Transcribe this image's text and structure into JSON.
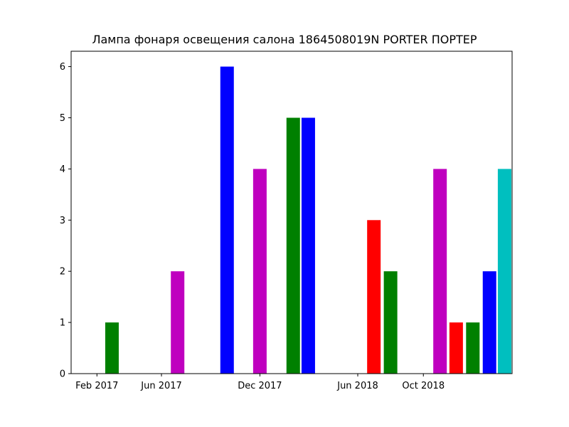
{
  "chart_data": {
    "type": "bar",
    "title": "Лампа фонаря освещения салона 1864508019N PORTER ПОРТЕР",
    "xlabel": "",
    "ylabel": "",
    "x_axis": "date",
    "xlim": [
      "2016-12-15",
      "2019-03-15"
    ],
    "ylim": [
      0,
      6.3
    ],
    "grid": false,
    "x_tick_labels": [
      {
        "label": "Feb 2017",
        "date": "2017-02-01"
      },
      {
        "label": "Jun 2017",
        "date": "2017-06-01"
      },
      {
        "label": "Dec 2017",
        "date": "2017-12-01"
      },
      {
        "label": "Jun 2018",
        "date": "2018-06-01"
      },
      {
        "label": "Oct 2018",
        "date": "2018-10-01"
      }
    ],
    "y_ticks": [
      0,
      1,
      2,
      3,
      4,
      5,
      6
    ],
    "bars": [
      {
        "date": "2017-03-01",
        "value": 1,
        "color": "#008000"
      },
      {
        "date": "2017-07-01",
        "value": 2,
        "color": "#bf00bf"
      },
      {
        "date": "2017-10-01",
        "value": 6,
        "color": "#0000ff"
      },
      {
        "date": "2017-12-01",
        "value": 4,
        "color": "#bf00bf"
      },
      {
        "date": "2018-02-01",
        "value": 5,
        "color": "#008000"
      },
      {
        "date": "2018-03-01",
        "value": 5,
        "color": "#0000ff"
      },
      {
        "date": "2018-07-01",
        "value": 3,
        "color": "#ff0000"
      },
      {
        "date": "2018-08-01",
        "value": 2,
        "color": "#008000"
      },
      {
        "date": "2018-11-01",
        "value": 4,
        "color": "#bf00bf"
      },
      {
        "date": "2018-12-01",
        "value": 1,
        "color": "#ff0000"
      },
      {
        "date": "2019-01-01",
        "value": 1,
        "color": "#008000"
      },
      {
        "date": "2019-02-01",
        "value": 2,
        "color": "#0000ff"
      },
      {
        "date": "2019-03-01",
        "value": 4,
        "color": "#00bfbf"
      }
    ]
  }
}
